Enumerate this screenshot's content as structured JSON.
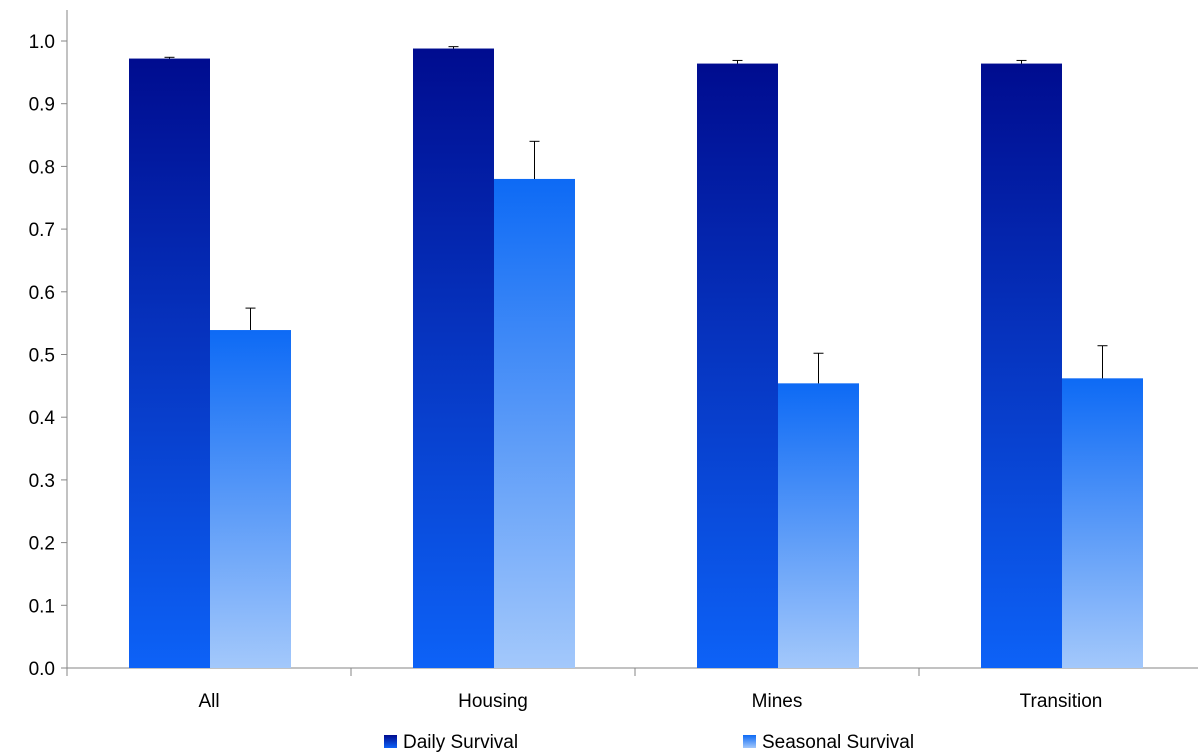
{
  "chart_data": {
    "type": "bar",
    "categories": [
      "All",
      "Housing",
      "Mines",
      "Transition"
    ],
    "series": [
      {
        "name": "Daily Survival",
        "values": [
          0.972,
          0.988,
          0.964,
          0.964
        ],
        "errors": [
          0.002,
          0.003,
          0.005,
          0.005
        ],
        "color_top": "#000c8f",
        "color_bottom": "#0d62f7"
      },
      {
        "name": "Seasonal Survival",
        "values": [
          0.539,
          0.78,
          0.454,
          0.462
        ],
        "errors": [
          0.035,
          0.06,
          0.048,
          0.052
        ],
        "color_top": "#0d6af5",
        "color_bottom": "#a3c8fb"
      }
    ],
    "yticks": [
      "0.0",
      "0.1",
      "0.2",
      "0.3",
      "0.4",
      "0.5",
      "0.6",
      "0.7",
      "0.8",
      "0.9",
      "1.0"
    ],
    "ylim": [
      0,
      1.0
    ],
    "legend_position": "bottom",
    "grid": false
  }
}
